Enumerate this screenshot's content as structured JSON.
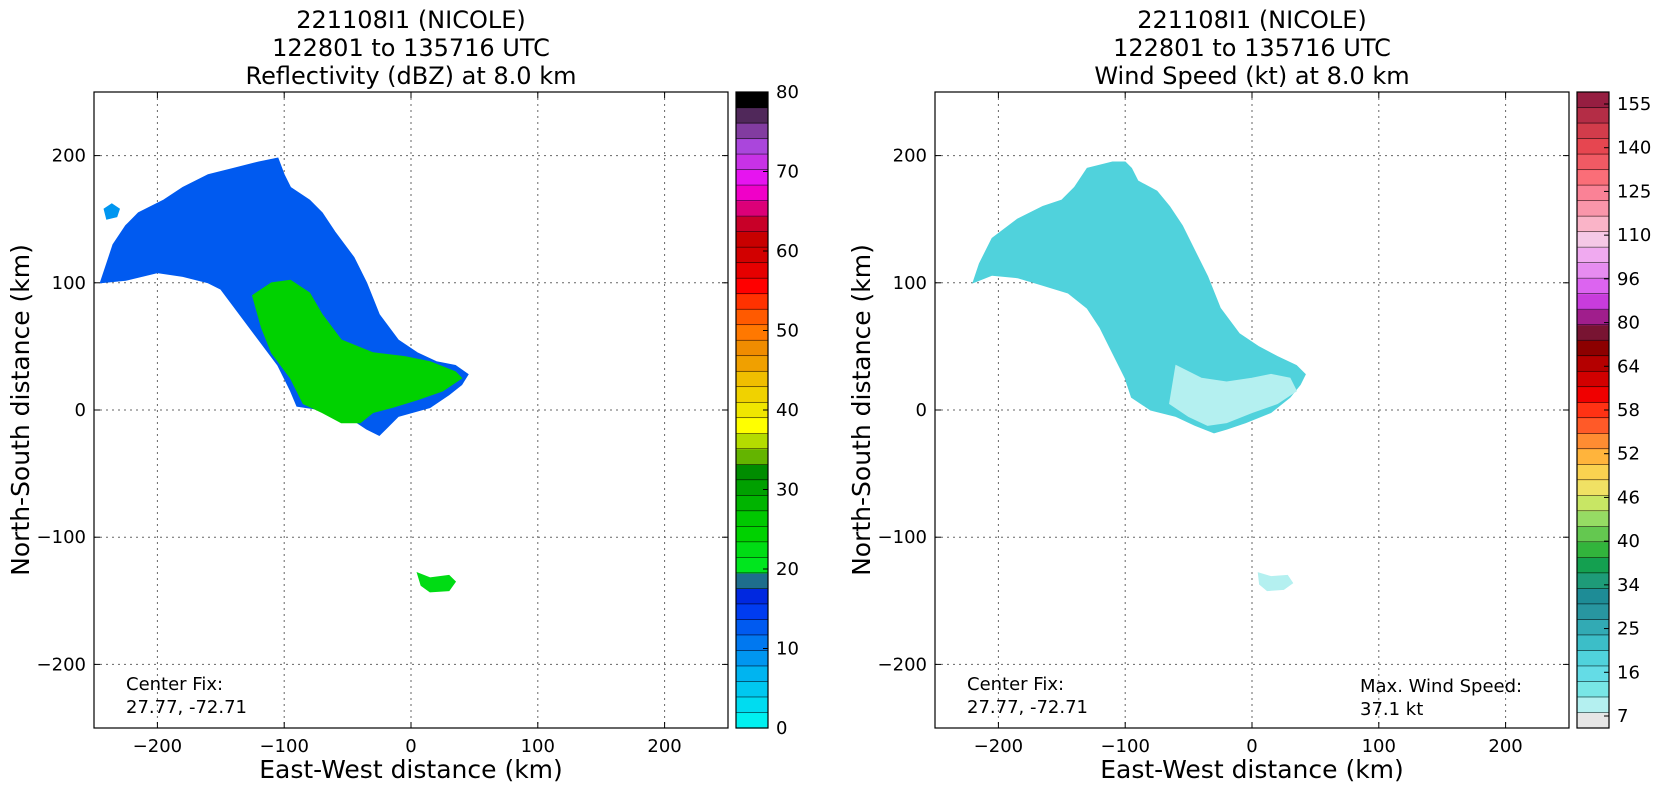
{
  "panels": [
    {
      "title_lines": [
        "221108I1 (NICOLE)",
        "122801 to 135716 UTC",
        "Reflectivity (dBZ) at 8.0 km"
      ],
      "center_fix_label": "Center Fix:",
      "center_fix_value": "27.77, -72.71",
      "max_wind_label": "",
      "max_wind_value": "",
      "colorbar": {
        "colors": [
          "#00f0f0",
          "#00dcf0",
          "#00c8f0",
          "#00b4f0",
          "#0096f0",
          "#0078f0",
          "#005af0",
          "#003cf0",
          "#0028e0",
          "#1e6e8c",
          "#00e61e",
          "#00dc14",
          "#00d200",
          "#00c800",
          "#00b400",
          "#00a000",
          "#008c00",
          "#64b400",
          "#b4dc00",
          "#ffff00",
          "#f0e600",
          "#f0d200",
          "#f0be00",
          "#f0a000",
          "#f08c00",
          "#ff7800",
          "#ff5a00",
          "#ff3200",
          "#ff0000",
          "#e60000",
          "#d20000",
          "#c80000",
          "#c80028",
          "#dc0078",
          "#f000c8",
          "#e614f0",
          "#c832e6",
          "#aa46dc",
          "#823ca0",
          "#50285a",
          "#000000"
        ],
        "tick_labels": [
          "0",
          "10",
          "20",
          "30",
          "40",
          "50",
          "60",
          "70",
          "80"
        ]
      },
      "chart_data": {
        "type": "heatmap",
        "quantity": "Reflectivity (dBZ)",
        "xlabel": "East-West distance (km)",
        "ylabel": "North-South distance (km)",
        "xlim": [
          -250,
          250
        ],
        "ylim": [
          -250,
          250
        ],
        "x_ticks": [
          "−200",
          "−100",
          "0",
          "100",
          "200"
        ],
        "y_ticks": [
          "200",
          "100",
          "0",
          "−100",
          "−200"
        ],
        "grid": true,
        "colorbar_range": [
          0,
          80
        ],
        "regions": [
          {
            "name": "main",
            "value": 12,
            "outline": [
              [
                -245,
                100
              ],
              [
                -240,
                115
              ],
              [
                -235,
                130
              ],
              [
                -225,
                145
              ],
              [
                -215,
                155
              ],
              [
                -195,
                165
              ],
              [
                -180,
                175
              ],
              [
                -160,
                185
              ],
              [
                -140,
                190
              ],
              [
                -120,
                195
              ],
              [
                -105,
                198
              ],
              [
                -100,
                185
              ],
              [
                -95,
                175
              ],
              [
                -80,
                165
              ],
              [
                -70,
                155
              ],
              [
                -60,
                140
              ],
              [
                -45,
                120
              ],
              [
                -35,
                100
              ],
              [
                -25,
                75
              ],
              [
                -10,
                55
              ],
              [
                5,
                45
              ],
              [
                20,
                38
              ],
              [
                35,
                35
              ],
              [
                45,
                28
              ],
              [
                40,
                20
              ],
              [
                30,
                12
              ],
              [
                15,
                2
              ],
              [
                -10,
                -5
              ],
              [
                -20,
                -15
              ],
              [
                -25,
                -20
              ],
              [
                -35,
                -15
              ],
              [
                -50,
                -5
              ],
              [
                -70,
                0
              ],
              [
                -90,
                3
              ],
              [
                -95,
                15
              ],
              [
                -105,
                35
              ],
              [
                -120,
                55
              ],
              [
                -135,
                75
              ],
              [
                -150,
                95
              ],
              [
                -160,
                100
              ],
              [
                -180,
                105
              ],
              [
                -200,
                108
              ],
              [
                -225,
                102
              ],
              [
                -245,
                100
              ]
            ]
          },
          {
            "name": "main-core",
            "value": 24,
            "outline": [
              [
                -125,
                90
              ],
              [
                -110,
                100
              ],
              [
                -95,
                102
              ],
              [
                -80,
                92
              ],
              [
                -70,
                75
              ],
              [
                -55,
                55
              ],
              [
                -30,
                45
              ],
              [
                -5,
                42
              ],
              [
                15,
                38
              ],
              [
                35,
                30
              ],
              [
                40,
                25
              ],
              [
                25,
                15
              ],
              [
                5,
                8
              ],
              [
                -15,
                2
              ],
              [
                -30,
                -2
              ],
              [
                -40,
                -10
              ],
              [
                -55,
                -10
              ],
              [
                -70,
                -2
              ],
              [
                -85,
                5
              ],
              [
                -95,
                25
              ],
              [
                -110,
                45
              ],
              [
                -118,
                65
              ],
              [
                -125,
                90
              ]
            ]
          },
          {
            "name": "south-cell",
            "value": 22,
            "outline": [
              [
                5,
                -128
              ],
              [
                15,
                -132
              ],
              [
                30,
                -130
              ],
              [
                35,
                -135
              ],
              [
                30,
                -142
              ],
              [
                15,
                -143
              ],
              [
                8,
                -138
              ],
              [
                5,
                -128
              ]
            ]
          },
          {
            "name": "west-speck",
            "value": 8,
            "outline": [
              [
                -240,
                150
              ],
              [
                -232,
                152
              ],
              [
                -230,
                158
              ],
              [
                -236,
                162
              ],
              [
                -242,
                158
              ],
              [
                -240,
                150
              ]
            ]
          }
        ]
      }
    },
    {
      "title_lines": [
        "221108I1 (NICOLE)",
        "122801 to 135716 UTC",
        "Wind Speed (kt) at 8.0 km"
      ],
      "center_fix_label": "Center Fix:",
      "center_fix_value": "27.77, -72.71",
      "max_wind_label": "Max. Wind Speed:",
      "max_wind_value": "37.1 kt",
      "colorbar": {
        "colors": [
          "#e6e6e6",
          "#b4f0f0",
          "#78e6e6",
          "#64dce6",
          "#50d2dc",
          "#3cbec8",
          "#32aab4",
          "#2896a0",
          "#1e8c96",
          "#1e9b78",
          "#14a050",
          "#32b43c",
          "#64c850",
          "#96dc64",
          "#c8e664",
          "#f0e164",
          "#fad250",
          "#ffb43c",
          "#ff8c32",
          "#ff5a28",
          "#ff3214",
          "#f00000",
          "#d20000",
          "#b40000",
          "#8c0000",
          "#781432",
          "#a01e8c",
          "#c83cdc",
          "#dc64f0",
          "#e68cf0",
          "#f0aaf0",
          "#f5c8e6",
          "#fab4c8",
          "#fa96aa",
          "#fa8296",
          "#fa6e78",
          "#f05a64",
          "#e64650",
          "#d23c4b",
          "#b42d46",
          "#961e41"
        ],
        "tick_labels": [
          "7",
          "16",
          "25",
          "34",
          "40",
          "46",
          "52",
          "58",
          "64",
          "80",
          "96",
          "110",
          "125",
          "140",
          "155"
        ]
      },
      "chart_data": {
        "type": "heatmap",
        "quantity": "Wind Speed (kt)",
        "xlabel": "East-West distance (km)",
        "ylabel": "North-South distance (km)",
        "xlim": [
          -250,
          250
        ],
        "ylim": [
          -250,
          250
        ],
        "x_ticks": [
          "−200",
          "−100",
          "0",
          "100",
          "200"
        ],
        "y_ticks": [
          "200",
          "100",
          "0",
          "−100",
          "−200"
        ],
        "grid": true,
        "max_value": 37.1,
        "regions": [
          {
            "name": "main",
            "value": 22,
            "outline": [
              [
                -220,
                100
              ],
              [
                -215,
                115
              ],
              [
                -205,
                135
              ],
              [
                -185,
                150
              ],
              [
                -165,
                160
              ],
              [
                -150,
                165
              ],
              [
                -140,
                175
              ],
              [
                -130,
                190
              ],
              [
                -110,
                195
              ],
              [
                -100,
                195
              ],
              [
                -95,
                190
              ],
              [
                -90,
                180
              ],
              [
                -75,
                172
              ],
              [
                -65,
                160
              ],
              [
                -55,
                145
              ],
              [
                -45,
                125
              ],
              [
                -35,
                105
              ],
              [
                -25,
                80
              ],
              [
                -10,
                60
              ],
              [
                5,
                50
              ],
              [
                20,
                42
              ],
              [
                35,
                35
              ],
              [
                42,
                28
              ],
              [
                38,
                20
              ],
              [
                30,
                10
              ],
              [
                15,
                -2
              ],
              [
                -5,
                -10
              ],
              [
                -20,
                -15
              ],
              [
                -30,
                -18
              ],
              [
                -45,
                -12
              ],
              [
                -60,
                -5
              ],
              [
                -80,
                0
              ],
              [
                -95,
                10
              ],
              [
                -100,
                25
              ],
              [
                -110,
                45
              ],
              [
                -120,
                65
              ],
              [
                -130,
                80
              ],
              [
                -145,
                92
              ],
              [
                -165,
                98
              ],
              [
                -185,
                104
              ],
              [
                -205,
                106
              ],
              [
                -220,
                100
              ]
            ]
          },
          {
            "name": "east-calm",
            "value": 13,
            "outline": [
              [
                -60,
                35
              ],
              [
                -40,
                25
              ],
              [
                -20,
                22
              ],
              [
                0,
                25
              ],
              [
                15,
                28
              ],
              [
                30,
                25
              ],
              [
                35,
                15
              ],
              [
                20,
                5
              ],
              [
                0,
                -2
              ],
              [
                -20,
                -10
              ],
              [
                -35,
                -12
              ],
              [
                -50,
                -5
              ],
              [
                -65,
                5
              ],
              [
                -60,
                35
              ]
            ]
          },
          {
            "name": "south-cell",
            "value": 13,
            "outline": [
              [
                5,
                -128
              ],
              [
                15,
                -131
              ],
              [
                28,
                -130
              ],
              [
                32,
                -136
              ],
              [
                25,
                -141
              ],
              [
                12,
                -142
              ],
              [
                6,
                -137
              ],
              [
                5,
                -128
              ]
            ]
          }
        ]
      }
    }
  ]
}
